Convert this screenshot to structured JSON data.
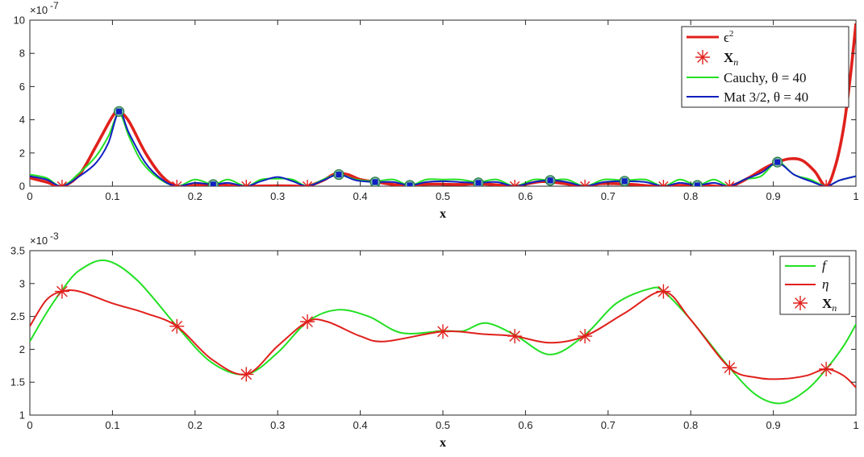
{
  "chart_data": [
    {
      "type": "line",
      "xlabel": "x",
      "ylabel": "",
      "xlim": [
        0,
        1
      ],
      "ylim": [
        0,
        10
      ],
      "y_multiplier": "×10",
      "y_exponent": "-7",
      "xticks": [
        "0",
        "0.1",
        "0.2",
        "0.3",
        "0.4",
        "0.5",
        "0.6",
        "0.7",
        "0.8",
        "0.9",
        "1"
      ],
      "yticks": [
        "0",
        "2",
        "4",
        "6",
        "8",
        "10"
      ],
      "legend_position": "top-right",
      "legend": [
        {
          "label_main": "ϵ",
          "label_sup": "2",
          "label_rest": "",
          "style": "line",
          "color": "#e0201c"
        },
        {
          "label_main": "X",
          "label_sub": "n",
          "style": "asterisk",
          "color": "#e0201c"
        },
        {
          "label": "Cauchy, θ = 40",
          "style": "line",
          "color": "#22e022"
        },
        {
          "label": "Mat 3/2, θ = 40",
          "style": "line",
          "color": "#1020c0"
        }
      ],
      "colors": {
        "epsilon2": "#e0201c",
        "cauchy": "#22e022",
        "matern": "#1020c0",
        "xn": "#e0201c"
      },
      "xn_points": [
        0.039,
        0.178,
        0.262,
        0.336,
        0.587,
        0.672,
        0.767,
        0.847,
        0.964
      ],
      "series": [
        {
          "name": "ϵ²",
          "key": "epsilon2",
          "x": [
            0,
            0.02,
            0.039,
            0.06,
            0.08,
            0.1,
            0.108,
            0.12,
            0.14,
            0.16,
            0.178,
            0.2,
            0.22,
            0.24,
            0.262,
            0.28,
            0.3,
            0.32,
            0.336,
            0.355,
            0.37,
            0.385,
            0.4,
            0.42,
            0.44,
            0.46,
            0.48,
            0.5,
            0.52,
            0.54,
            0.56,
            0.587,
            0.6,
            0.62,
            0.64,
            0.672,
            0.69,
            0.71,
            0.73,
            0.75,
            0.767,
            0.78,
            0.8,
            0.82,
            0.847,
            0.87,
            0.89,
            0.905,
            0.92,
            0.935,
            0.95,
            0.964,
            0.975,
            0.985,
            0.993,
            1.0
          ],
          "y": [
            0.5,
            0.25,
            0,
            0.7,
            2.4,
            4.2,
            4.5,
            3.9,
            2.0,
            0.6,
            0,
            0.05,
            0.12,
            0.05,
            0,
            0.01,
            0.02,
            0.01,
            0,
            0.35,
            0.75,
            0.7,
            0.4,
            0.25,
            0.1,
            0.05,
            0.12,
            0.12,
            0.1,
            0.15,
            0.1,
            0,
            0.12,
            0.28,
            0.2,
            0,
            0.15,
            0.15,
            0.1,
            0.02,
            0,
            0.04,
            0.05,
            0.04,
            0,
            0.5,
            1.1,
            1.45,
            1.65,
            1.55,
            0.9,
            0,
            1.2,
            3.5,
            6.5,
            9.8
          ]
        },
        {
          "name": "Cauchy, θ = 40",
          "key": "cauchy",
          "x": [
            0,
            0.02,
            0.039,
            0.06,
            0.08,
            0.095,
            0.108,
            0.12,
            0.135,
            0.155,
            0.178,
            0.2,
            0.222,
            0.24,
            0.262,
            0.28,
            0.3,
            0.318,
            0.336,
            0.355,
            0.374,
            0.395,
            0.418,
            0.44,
            0.46,
            0.48,
            0.5,
            0.52,
            0.543,
            0.565,
            0.587,
            0.61,
            0.63,
            0.65,
            0.672,
            0.695,
            0.72,
            0.745,
            0.767,
            0.787,
            0.808,
            0.828,
            0.847,
            0.865,
            0.885,
            0.905,
            0.925,
            0.945,
            0.964,
            0.98,
            1.0
          ],
          "y": [
            0.7,
            0.5,
            0,
            0.8,
            1.8,
            3.0,
            4.4,
            3.0,
            1.5,
            0.5,
            0,
            0.4,
            0.1,
            0.4,
            0,
            0.4,
            0.45,
            0.4,
            0,
            0.4,
            0.7,
            0.4,
            0.3,
            0.4,
            0.05,
            0.4,
            0.4,
            0.4,
            0.25,
            0.4,
            0,
            0.4,
            0.35,
            0.4,
            0,
            0.4,
            0.35,
            0.4,
            0,
            0.4,
            0.05,
            0.4,
            0,
            0.4,
            0.6,
            1.45,
            0.7,
            0.4,
            0,
            0.35,
            0.6
          ]
        },
        {
          "name": "Mat 3/2, θ = 40",
          "key": "matern",
          "x": [
            0,
            0.02,
            0.039,
            0.06,
            0.08,
            0.095,
            0.108,
            0.12,
            0.14,
            0.16,
            0.178,
            0.2,
            0.222,
            0.24,
            0.262,
            0.28,
            0.3,
            0.318,
            0.336,
            0.355,
            0.374,
            0.395,
            0.418,
            0.44,
            0.46,
            0.48,
            0.5,
            0.52,
            0.543,
            0.565,
            0.587,
            0.61,
            0.63,
            0.65,
            0.672,
            0.695,
            0.72,
            0.745,
            0.767,
            0.787,
            0.808,
            0.828,
            0.847,
            0.865,
            0.885,
            0.905,
            0.925,
            0.945,
            0.964,
            0.98,
            1.0
          ],
          "y": [
            0.6,
            0.4,
            0,
            0.6,
            1.4,
            2.6,
            4.5,
            3.2,
            1.4,
            0.4,
            0,
            0.2,
            0.1,
            0.2,
            0,
            0.3,
            0.55,
            0.3,
            0,
            0.35,
            0.7,
            0.35,
            0.25,
            0.25,
            0.05,
            0.25,
            0.3,
            0.25,
            0.2,
            0.25,
            0,
            0.25,
            0.35,
            0.25,
            0,
            0.25,
            0.3,
            0.25,
            0,
            0.2,
            0.05,
            0.2,
            0,
            0.4,
            0.8,
            1.4,
            0.7,
            0.3,
            0,
            0.35,
            0.6
          ]
        }
      ],
      "markers": {
        "x": [
          0.108,
          0.222,
          0.374,
          0.418,
          0.46,
          0.543,
          0.63,
          0.72,
          0.808,
          0.905
        ],
        "y": [
          4.5,
          0.1,
          0.7,
          0.25,
          0.05,
          0.2,
          0.35,
          0.3,
          0.05,
          1.45
        ]
      }
    },
    {
      "type": "line",
      "xlabel": "x",
      "ylabel": "",
      "xlim": [
        0,
        1
      ],
      "ylim": [
        1,
        3.5
      ],
      "y_multiplier": "×10",
      "y_exponent": "-3",
      "xticks": [
        "0",
        "0.1",
        "0.2",
        "0.3",
        "0.4",
        "0.5",
        "0.6",
        "0.7",
        "0.8",
        "0.9",
        "1"
      ],
      "yticks": [
        "1",
        "1.5",
        "2",
        "2.5",
        "3",
        "3.5"
      ],
      "legend_position": "right",
      "legend": [
        {
          "label": "f",
          "style": "line",
          "color": "#22e022"
        },
        {
          "label": "η",
          "style": "line",
          "color": "#e0201c"
        },
        {
          "label_main": "X",
          "label_sub": "n",
          "style": "asterisk",
          "color": "#e0201c"
        }
      ],
      "colors": {
        "f": "#22e022",
        "eta": "#e0201c",
        "xn": "#e0201c"
      },
      "series": [
        {
          "name": "f",
          "key": "f",
          "x": [
            0,
            0.02,
            0.039,
            0.06,
            0.092,
            0.13,
            0.178,
            0.22,
            0.262,
            0.3,
            0.336,
            0.372,
            0.41,
            0.45,
            0.5,
            0.525,
            0.552,
            0.587,
            0.63,
            0.672,
            0.71,
            0.75,
            0.767,
            0.8,
            0.847,
            0.88,
            0.91,
            0.94,
            0.964,
            0.985,
            1.0
          ],
          "y": [
            2.12,
            2.55,
            2.9,
            3.2,
            3.35,
            3.05,
            2.35,
            1.8,
            1.62,
            1.95,
            2.42,
            2.6,
            2.5,
            2.25,
            2.28,
            2.28,
            2.4,
            2.22,
            1.92,
            2.22,
            2.7,
            2.92,
            2.88,
            2.45,
            1.72,
            1.3,
            1.18,
            1.38,
            1.7,
            2.05,
            2.38
          ]
        },
        {
          "name": "η",
          "key": "eta",
          "x": [
            0,
            0.02,
            0.039,
            0.06,
            0.1,
            0.14,
            0.178,
            0.22,
            0.262,
            0.3,
            0.336,
            0.36,
            0.4,
            0.43,
            0.5,
            0.55,
            0.587,
            0.63,
            0.672,
            0.72,
            0.767,
            0.8,
            0.847,
            0.88,
            0.91,
            0.94,
            0.964,
            0.985,
            1.0
          ],
          "y": [
            2.35,
            2.75,
            2.88,
            2.88,
            2.7,
            2.55,
            2.35,
            1.85,
            1.62,
            2.05,
            2.42,
            2.42,
            2.2,
            2.12,
            2.27,
            2.23,
            2.2,
            2.1,
            2.2,
            2.55,
            2.88,
            2.45,
            1.72,
            1.57,
            1.55,
            1.6,
            1.7,
            1.6,
            1.42
          ]
        }
      ],
      "xn_points": {
        "x": [
          0.039,
          0.178,
          0.262,
          0.336,
          0.5,
          0.587,
          0.672,
          0.767,
          0.847,
          0.964
        ],
        "y": [
          2.88,
          2.35,
          1.62,
          2.42,
          2.27,
          2.2,
          2.2,
          2.88,
          1.72,
          1.7
        ]
      }
    }
  ]
}
